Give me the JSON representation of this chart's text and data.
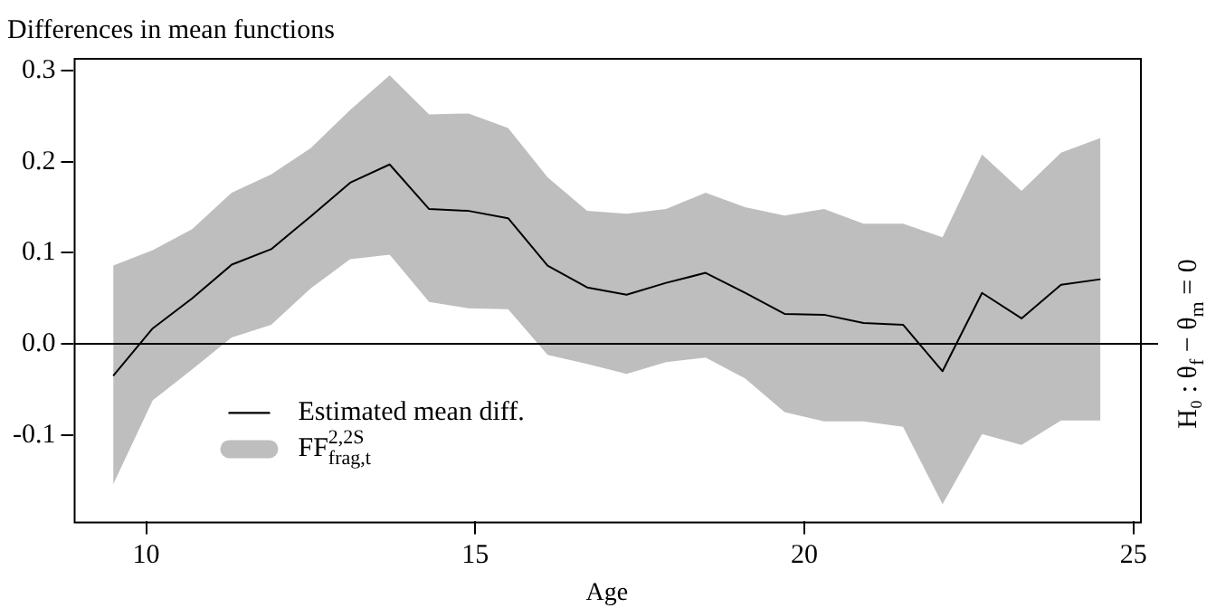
{
  "chart_data": {
    "type": "line",
    "title": "Differences in mean functions",
    "xlabel": "Age",
    "x": [
      9.5,
      10.1,
      10.7,
      11.3,
      11.9,
      12.5,
      13.1,
      13.7,
      14.3,
      14.9,
      15.5,
      16.1,
      16.7,
      17.3,
      17.9,
      18.5,
      19.1,
      19.7,
      20.3,
      20.9,
      21.5,
      22.1,
      22.7,
      23.3,
      23.9,
      24.5
    ],
    "series": [
      {
        "name": "Estimated mean diff.",
        "color": "#000000",
        "lower": [
          -0.154,
          -0.062,
          -0.028,
          0.007,
          0.021,
          0.061,
          0.093,
          0.098,
          0.046,
          0.039,
          0.038,
          -0.012,
          -0.022,
          -0.033,
          -0.02,
          -0.015,
          -0.038,
          -0.075,
          -0.085,
          -0.085,
          -0.091,
          -0.176,
          -0.099,
          -0.111,
          -0.084,
          -0.084
        ],
        "upper": [
          0.086,
          0.103,
          0.126,
          0.166,
          0.186,
          0.215,
          0.257,
          0.295,
          0.252,
          0.253,
          0.237,
          0.183,
          0.146,
          0.143,
          0.148,
          0.166,
          0.15,
          0.141,
          0.148,
          0.132,
          0.132,
          0.117,
          0.208,
          0.168,
          0.21,
          0.226
        ],
        "values": [
          -0.035,
          0.017,
          0.05,
          0.087,
          0.104,
          0.14,
          0.177,
          0.197,
          0.148,
          0.146,
          0.138,
          0.086,
          0.062,
          0.054,
          0.067,
          0.078,
          0.056,
          0.033,
          0.032,
          0.023,
          0.021,
          -0.03,
          0.056,
          0.028,
          0.065,
          0.071
        ]
      }
    ],
    "xlim": [
      8.9,
      25.1
    ],
    "xticks": [
      10,
      15,
      20,
      25
    ],
    "ylim": [
      -0.195,
      0.314
    ],
    "yticks": [
      -0.1,
      {
        "value": 0,
        "label": "0.0"
      },
      0.1,
      0.2,
      0.3
    ],
    "ref_lines": [
      {
        "axis": "y",
        "value": 0,
        "label": "H₀ : θ$_{f}$ − θ$_{m}$ = 0",
        "color": "#000000"
      }
    ],
    "annotations": [
      "FF$^{2,2S}$$_{frag,t}$"
    ],
    "grid": false,
    "legend": "bottom left",
    "marker": "none",
    "line_style": "solid"
  }
}
